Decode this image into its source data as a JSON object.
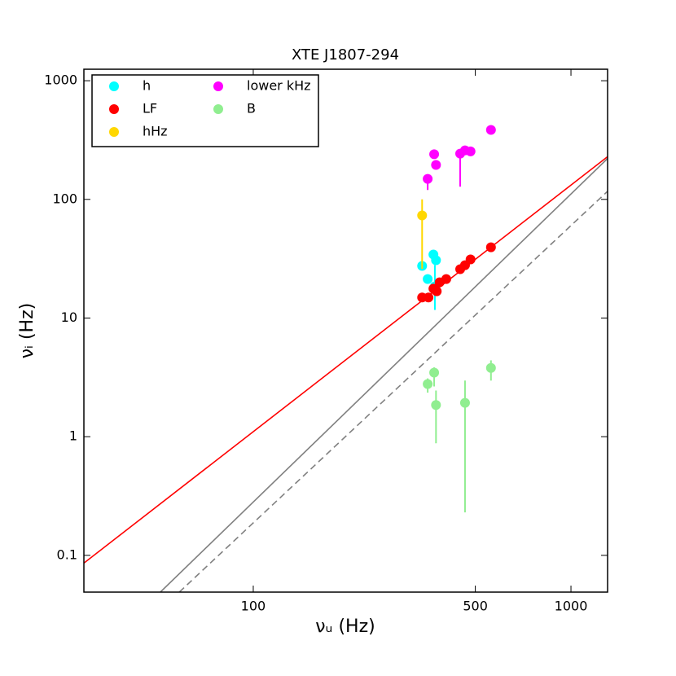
{
  "chart_data": {
    "type": "scatter",
    "title": "XTE J1807-294",
    "xlabel": "νᵤ (Hz)",
    "ylabel": "νᵢ (Hz)",
    "xscale": "log",
    "yscale": "log",
    "xlim": [
      29.3,
      1304
    ],
    "ylim": [
      0.049,
      1250
    ],
    "xticks": [
      100,
      500,
      1000
    ],
    "yticks": [
      0.1,
      1,
      10,
      100,
      1000
    ],
    "legend": "upper left",
    "series": [
      {
        "name": "h",
        "color": "#00ffff",
        "x": [
          340,
          354,
          369,
          376,
          373
        ],
        "values": [
          27.5,
          21.3,
          34.3,
          30.7,
          18.5
        ],
        "err_minus": [
          null,
          null,
          null,
          null,
          6.8
        ],
        "err_plus": [
          null,
          null,
          null,
          null,
          9.5
        ]
      },
      {
        "name": "LF",
        "color": "#ff0000",
        "x": [
          340,
          356,
          369,
          378,
          386,
          405,
          448,
          464,
          483,
          560
        ],
        "values": [
          14.9,
          14.9,
          17.7,
          16.8,
          20.0,
          21.3,
          25.8,
          27.9,
          31.2,
          39.5
        ],
        "err_minus": [
          null,
          null,
          null,
          null,
          null,
          null,
          null,
          null,
          null,
          null
        ],
        "err_plus": [
          null,
          null,
          null,
          null,
          null,
          null,
          null,
          null,
          null,
          null
        ]
      },
      {
        "name": "hHz",
        "color": "#ffd700",
        "x": [
          340
        ],
        "values": [
          73.3
        ],
        "err_minus": [
          47.3
        ],
        "err_plus": [
          26.7
        ]
      },
      {
        "name": "lower kHz",
        "color": "#ff00ff",
        "x": [
          354,
          371,
          376,
          448,
          464,
          483,
          560
        ],
        "values": [
          149,
          240,
          195,
          243,
          259,
          254,
          385
        ],
        "err_minus": [
          29,
          null,
          null,
          115,
          null,
          null,
          null
        ],
        "err_plus": [
          0,
          null,
          null,
          0,
          null,
          null,
          null
        ]
      },
      {
        "name": "B",
        "color": "#90ee90",
        "x": [
          354,
          371,
          376,
          464,
          560
        ],
        "values": [
          2.78,
          3.47,
          1.85,
          1.93,
          3.8
        ],
        "err_minus": [
          0.43,
          0.82,
          0.97,
          1.7,
          0.83
        ],
        "err_plus": [
          0.32,
          0.37,
          0.6,
          1.04,
          0.6
        ]
      }
    ],
    "lines": [
      {
        "color": "#ff0000",
        "dash": false,
        "x": [
          29.3,
          1304
        ],
        "values": [
          0.086,
          229
        ]
      },
      {
        "color": "#808080",
        "dash": false,
        "x": [
          51.0,
          1304
        ],
        "values": [
          0.049,
          221
        ]
      },
      {
        "color": "#808080",
        "dash": true,
        "x": [
          58.5,
          1304
        ],
        "values": [
          0.049,
          117
        ]
      }
    ]
  }
}
